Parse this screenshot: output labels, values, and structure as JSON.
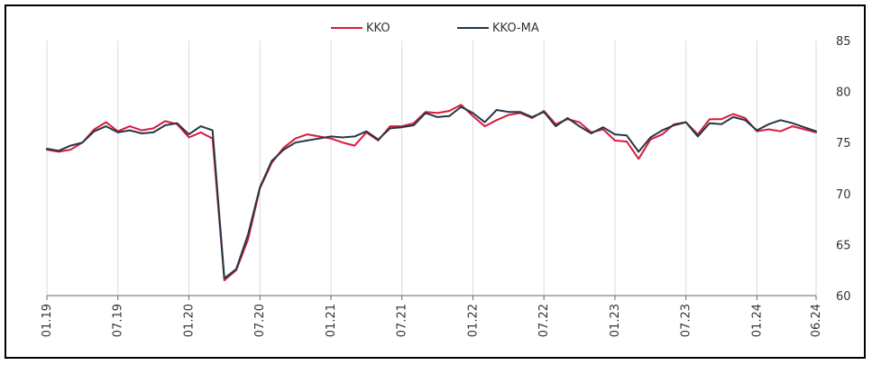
{
  "chart_data": {
    "type": "line",
    "title": "",
    "xlabel": "",
    "ylabel": "",
    "ylim": [
      60,
      85
    ],
    "y_ticks": [
      60,
      65,
      70,
      75,
      80,
      85
    ],
    "y_axis_side": "right",
    "grid": "vertical",
    "legend_position": "top-center",
    "x_tick_labels": [
      "01.19",
      "07.19",
      "01.20",
      "07.20",
      "01.21",
      "07.21",
      "01.22",
      "07.22",
      "01.23",
      "07.23",
      "01.24",
      "06.24"
    ],
    "x_tick_months": [
      0,
      6,
      12,
      18,
      24,
      30,
      36,
      42,
      48,
      54,
      60,
      65
    ],
    "months": [
      0,
      1,
      2,
      3,
      4,
      5,
      6,
      7,
      8,
      9,
      10,
      11,
      12,
      13,
      14,
      15,
      16,
      17,
      18,
      19,
      20,
      21,
      22,
      23,
      24,
      25,
      26,
      27,
      28,
      29,
      30,
      31,
      32,
      33,
      34,
      35,
      36,
      37,
      38,
      39,
      40,
      41,
      42,
      43,
      44,
      45,
      46,
      47,
      48,
      49,
      50,
      51,
      52,
      53,
      54,
      55,
      56,
      57,
      58,
      59,
      60,
      61,
      62,
      63,
      64,
      65
    ],
    "series": [
      {
        "name": "KKO",
        "color": "#d81b3c",
        "values": [
          74.3,
          74.1,
          74.3,
          75.0,
          76.3,
          77.0,
          76.1,
          76.6,
          76.2,
          76.4,
          77.1,
          76.8,
          75.5,
          76.0,
          75.4,
          61.5,
          62.5,
          65.5,
          70.5,
          73.0,
          74.5,
          75.4,
          75.8,
          75.6,
          75.4,
          75.0,
          74.7,
          76.0,
          75.2,
          76.6,
          76.6,
          76.9,
          78.0,
          77.9,
          78.1,
          78.7,
          77.6,
          76.6,
          77.2,
          77.7,
          77.9,
          77.4,
          78.1,
          76.8,
          77.3,
          77.0,
          76.0,
          76.3,
          75.2,
          75.1,
          73.4,
          75.3,
          75.8,
          76.8,
          77.0,
          75.8,
          77.3,
          77.3,
          77.8,
          77.4,
          76.1,
          76.3,
          76.1,
          76.6,
          76.3,
          76.0
        ]
      },
      {
        "name": "KKO-MA",
        "color": "#243746",
        "values": [
          74.4,
          74.2,
          74.7,
          75.0,
          76.1,
          76.6,
          76.0,
          76.2,
          75.9,
          76.0,
          76.7,
          76.9,
          75.8,
          76.6,
          76.2,
          61.7,
          62.6,
          66.0,
          70.6,
          73.2,
          74.3,
          75.0,
          75.2,
          75.4,
          75.6,
          75.5,
          75.6,
          76.1,
          75.3,
          76.4,
          76.5,
          76.7,
          77.9,
          77.5,
          77.6,
          78.5,
          77.9,
          77.0,
          78.2,
          78.0,
          78.0,
          77.5,
          78.0,
          76.6,
          77.4,
          76.6,
          75.9,
          76.5,
          75.8,
          75.7,
          74.1,
          75.5,
          76.2,
          76.7,
          77.0,
          75.6,
          76.9,
          76.8,
          77.5,
          77.2,
          76.2,
          76.8,
          77.2,
          76.9,
          76.5,
          76.1
        ]
      }
    ]
  }
}
